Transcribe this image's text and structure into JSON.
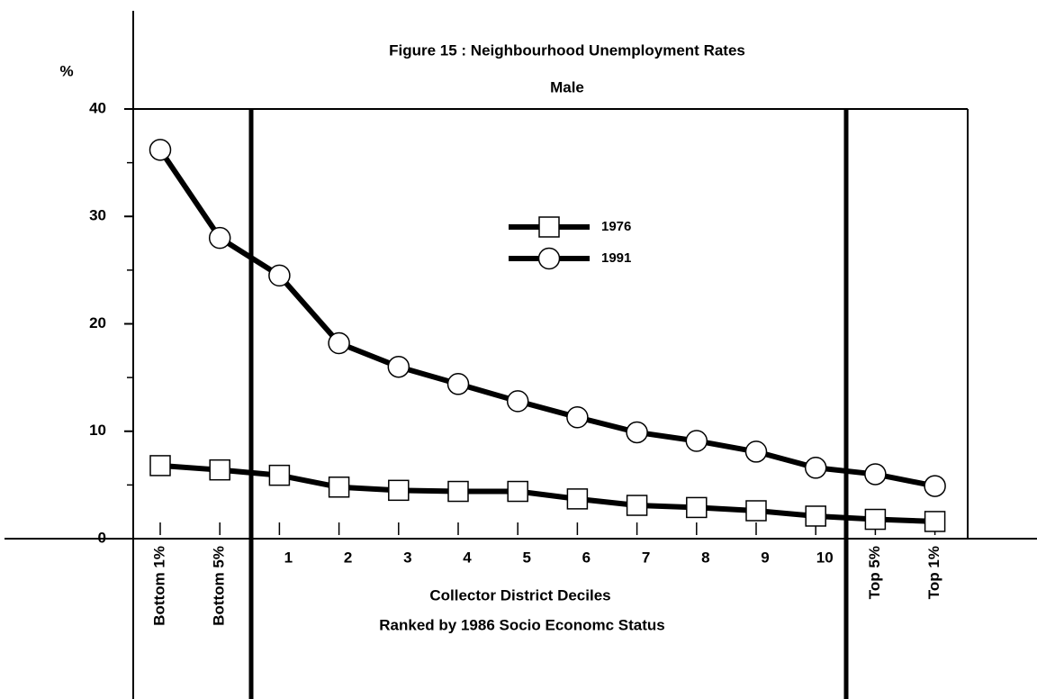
{
  "chart_data": {
    "type": "line",
    "title": "Figure 15 : Neighbourhood Unemployment Rates",
    "subtitle": "Male",
    "y_label": "%",
    "x_label": "Collector District Deciles",
    "x_label_2": "Ranked by 1986 Socio Economc Status",
    "categories": [
      "Bottom 1%",
      "Bottom 5%",
      "1",
      "2",
      "3",
      "4",
      "5",
      "6",
      "7",
      "8",
      "9",
      "10",
      "Top 5%",
      "Top 1%"
    ],
    "series": [
      {
        "name": "1976",
        "color": "#000000",
        "marker": "square",
        "values": [
          6.8,
          6.4,
          5.9,
          4.8,
          4.5,
          4.4,
          4.4,
          3.7,
          3.1,
          2.9,
          2.6,
          2.1,
          1.8,
          1.6
        ]
      },
      {
        "name": "1991",
        "color": "#000000",
        "marker": "circle",
        "values": [
          36.2,
          28.0,
          24.5,
          18.2,
          16.0,
          14.4,
          12.8,
          11.3,
          9.9,
          9.1,
          8.1,
          6.6,
          6.0,
          4.9
        ]
      }
    ],
    "ylim": [
      0,
      40
    ],
    "yticks": [
      0,
      10,
      20,
      30,
      40
    ],
    "grid": false
  }
}
